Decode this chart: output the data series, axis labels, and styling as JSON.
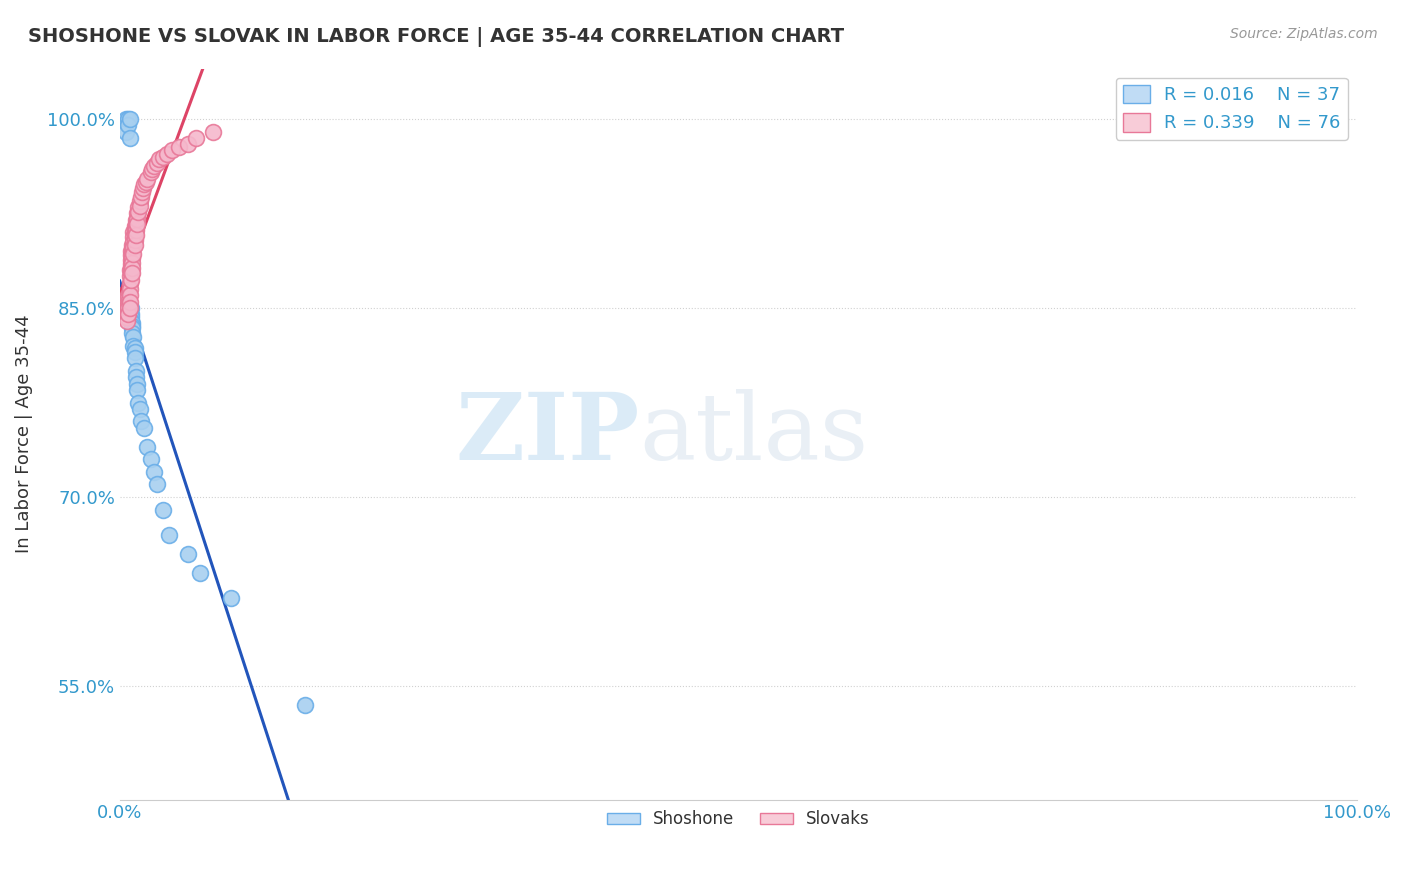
{
  "title": "SHOSHONE VS SLOVAK IN LABOR FORCE | AGE 35-44 CORRELATION CHART",
  "source_text": "Source: ZipAtlas.com",
  "ylabel": "In Labor Force | Age 35-44",
  "xlim": [
    0.0,
    1.0
  ],
  "ylim": [
    0.46,
    1.04
  ],
  "yticks": [
    0.55,
    0.7,
    0.85,
    1.0
  ],
  "ytick_labels": [
    "55.0%",
    "70.0%",
    "85.0%",
    "100.0%"
  ],
  "xticks": [
    0.0,
    1.0
  ],
  "xtick_labels": [
    "0.0%",
    "100.0%"
  ],
  "shoshone_R": "0.016",
  "shoshone_N": "37",
  "slovak_R": "0.339",
  "slovak_N": "76",
  "watermark_zip": "ZIP",
  "watermark_atlas": "atlas",
  "shoshone_color": "#a8d0f0",
  "slovak_color": "#f5b8cc",
  "shoshone_edge_color": "#6aaee8",
  "slovak_edge_color": "#e87898",
  "shoshone_line_color": "#2255bb",
  "slovak_line_color": "#dd4466",
  "legend_color_shoshone": "#c0dcf5",
  "legend_color_slovak": "#f8ccd8",
  "text_color": "#3399cc",
  "title_color": "#333333",
  "source_color": "#999999",
  "shoshone_x": [
    0.005,
    0.005,
    0.007,
    0.007,
    0.008,
    0.008,
    0.009,
    0.009,
    0.009,
    0.009,
    0.01,
    0.01,
    0.01,
    0.01,
    0.011,
    0.011,
    0.012,
    0.012,
    0.012,
    0.013,
    0.013,
    0.014,
    0.014,
    0.015,
    0.016,
    0.017,
    0.02,
    0.022,
    0.025,
    0.028,
    0.03,
    0.035,
    0.04,
    0.055,
    0.065,
    0.09,
    0.15
  ],
  "shoshone_y": [
    1.0,
    0.99,
    1.0,
    0.995,
    1.0,
    0.985,
    0.85,
    0.845,
    0.843,
    0.84,
    0.838,
    0.836,
    0.834,
    0.83,
    0.827,
    0.82,
    0.818,
    0.815,
    0.81,
    0.8,
    0.795,
    0.79,
    0.785,
    0.775,
    0.77,
    0.76,
    0.755,
    0.74,
    0.73,
    0.72,
    0.71,
    0.69,
    0.67,
    0.655,
    0.64,
    0.62,
    0.535
  ],
  "slovak_x": [
    0.004,
    0.004,
    0.005,
    0.005,
    0.005,
    0.006,
    0.006,
    0.006,
    0.006,
    0.006,
    0.007,
    0.007,
    0.007,
    0.007,
    0.007,
    0.007,
    0.008,
    0.008,
    0.008,
    0.008,
    0.008,
    0.008,
    0.008,
    0.009,
    0.009,
    0.009,
    0.009,
    0.009,
    0.009,
    0.009,
    0.01,
    0.01,
    0.01,
    0.01,
    0.01,
    0.01,
    0.01,
    0.011,
    0.011,
    0.011,
    0.011,
    0.011,
    0.012,
    0.012,
    0.012,
    0.012,
    0.012,
    0.013,
    0.013,
    0.013,
    0.013,
    0.014,
    0.014,
    0.014,
    0.015,
    0.015,
    0.016,
    0.016,
    0.017,
    0.018,
    0.019,
    0.02,
    0.021,
    0.022,
    0.025,
    0.026,
    0.028,
    0.03,
    0.032,
    0.035,
    0.038,
    0.042,
    0.048,
    0.055,
    0.062,
    0.075
  ],
  "slovak_y": [
    0.845,
    0.843,
    0.848,
    0.845,
    0.843,
    0.85,
    0.848,
    0.845,
    0.843,
    0.84,
    0.86,
    0.858,
    0.855,
    0.852,
    0.85,
    0.845,
    0.88,
    0.875,
    0.87,
    0.865,
    0.86,
    0.855,
    0.85,
    0.895,
    0.892,
    0.888,
    0.885,
    0.882,
    0.878,
    0.872,
    0.9,
    0.897,
    0.893,
    0.89,
    0.886,
    0.882,
    0.878,
    0.91,
    0.906,
    0.902,
    0.898,
    0.893,
    0.915,
    0.912,
    0.908,
    0.904,
    0.9,
    0.92,
    0.916,
    0.912,
    0.908,
    0.925,
    0.921,
    0.917,
    0.93,
    0.926,
    0.935,
    0.931,
    0.938,
    0.942,
    0.945,
    0.948,
    0.95,
    0.952,
    0.958,
    0.96,
    0.963,
    0.965,
    0.968,
    0.97,
    0.972,
    0.975,
    0.978,
    0.98,
    0.985,
    0.99
  ]
}
